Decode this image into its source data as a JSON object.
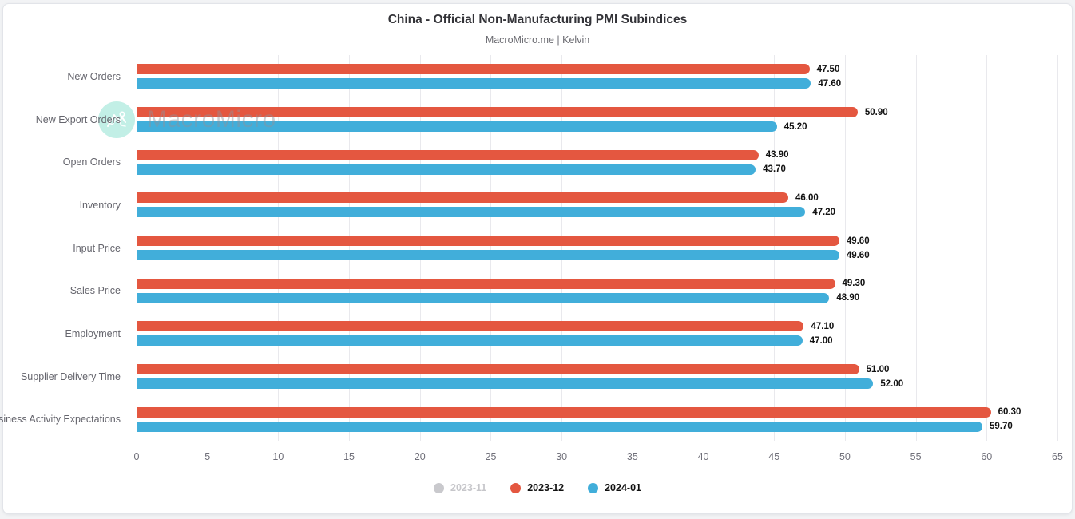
{
  "card": {
    "title": "China - Official Non-Manufacturing PMI Subindices",
    "subtitle": "MacroMicro.me | Kelvin"
  },
  "watermark": {
    "text": "MacroMicro",
    "logo_icon": "macromicro-mountain-logo"
  },
  "chart_data": {
    "type": "bar",
    "orientation": "horizontal",
    "title": "China - Official Non-Manufacturing PMI Subindices",
    "subtitle": "MacroMicro.me | Kelvin",
    "categories": [
      "New Orders",
      "New Export Orders",
      "Open Orders",
      "Inventory",
      "Input Price",
      "Sales Price",
      "Employment",
      "Supplier Delivery Time",
      "Business Activity Expectations"
    ],
    "series": [
      {
        "name": "2023-11",
        "color": "#c9c9cd",
        "visible": false,
        "values": null
      },
      {
        "name": "2023-12",
        "color": "#e45740",
        "visible": true,
        "values": [
          47.5,
          50.9,
          43.9,
          46.0,
          49.6,
          49.3,
          47.1,
          51.0,
          60.3
        ]
      },
      {
        "name": "2024-01",
        "color": "#41aeda",
        "visible": true,
        "values": [
          47.6,
          45.2,
          43.7,
          47.2,
          49.6,
          48.9,
          47.0,
          52.0,
          59.7
        ]
      }
    ],
    "xlim": [
      0,
      65
    ],
    "xticks": [
      0,
      5,
      10,
      15,
      20,
      25,
      30,
      35,
      40,
      45,
      50,
      55,
      60,
      65
    ],
    "grid": true,
    "legend_position": "bottom",
    "value_label_decimals": 2
  }
}
